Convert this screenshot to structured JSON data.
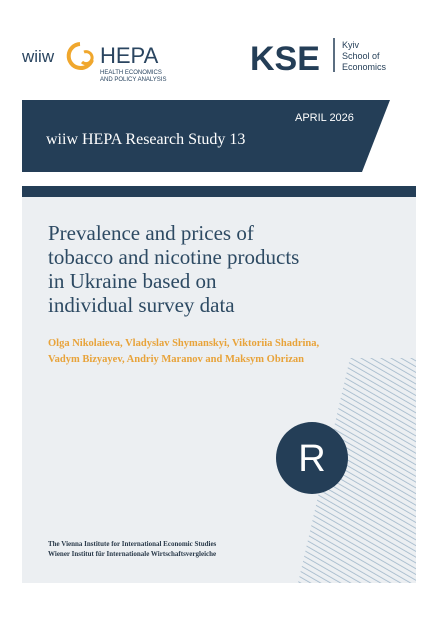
{
  "logos": {
    "wiiw": "wiiw",
    "hepa": "HEPA",
    "hepa_sub": [
      "HEALTH ECONOMICS",
      "AND POLICY ANALYSIS"
    ],
    "kse": "KSE",
    "kse_sub": [
      "Kyiv",
      "School of",
      "Economics"
    ]
  },
  "banner": {
    "series": "wiiw HEPA Research Study 13",
    "date": "APRIL 2026"
  },
  "title": [
    "Prevalence and prices of",
    "tobacco and nicotine products",
    "in Ukraine based on",
    "individual survey data"
  ],
  "authors": [
    "Olga Nikolaieva, Vladyslav Shymanskyi, Viktoriia Shadrina,",
    "Vadym Bizyayev, Andriy Maranov and Maksym Obrizan"
  ],
  "badge": "R",
  "footer": [
    "The Vienna Institute for International Economic Studies",
    "Wiener Institut für Internationale Wirtschaftsvergleiche"
  ]
}
